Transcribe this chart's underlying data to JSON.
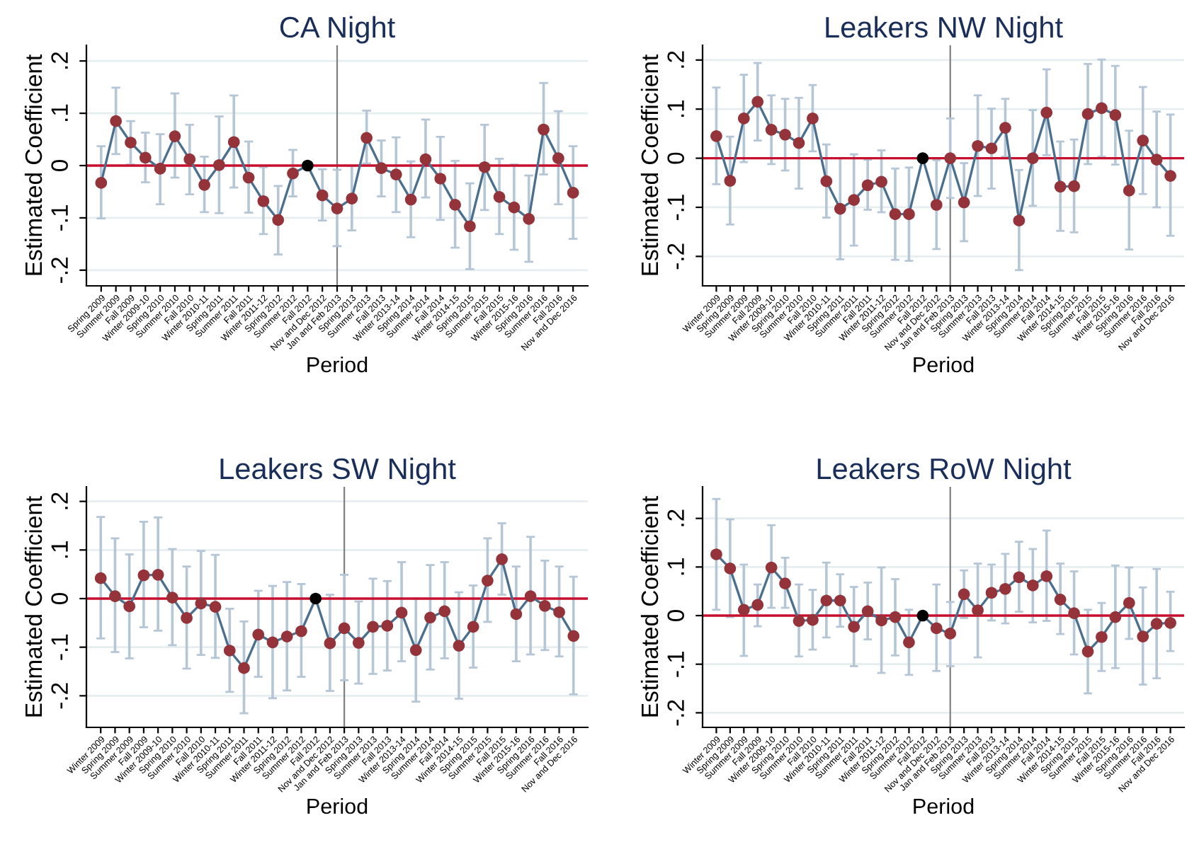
{
  "chart_data": [
    {
      "type": "line",
      "title": "CA Night",
      "xlabel": "Period",
      "ylabel": "Estimated Coefficient",
      "categories": [
        "Spring 2009",
        "Summer 2009",
        "Fall 2009",
        "Winter 2009-10",
        "Spring 2010",
        "Summer 2010",
        "Fall 2010",
        "Winter 2010-11",
        "Spring 2011",
        "Summer 2011",
        "Fall 2011",
        "Winter 2011-12",
        "Spring 2012",
        "Summer 2012",
        "Fall 2012",
        "Nov and Dec 2012",
        "Jan and Feb 2013",
        "Spring 2013",
        "Summer 2013",
        "Fall 2013",
        "Winter 2013-14",
        "Spring 2014",
        "Summer 2014",
        "Fall 2014",
        "Winter 2014-15",
        "Spring 2015",
        "Summer 2015",
        "Fall 2015",
        "Winter 2015-16",
        "Spring 2016",
        "Summer 2016",
        "Fall 2016",
        "Nov and Dec 2016"
      ],
      "series": [
        {
          "color": "#4a6f8f",
          "colors": [
            "#943339",
            "#943339",
            "#943339",
            "#943339",
            "#943339",
            "#943339",
            "#943339",
            "#943339",
            "#943339",
            "#943339",
            "#943339",
            "#943339",
            "#943339",
            "#943339",
            "#000000",
            "#943339",
            "#943339",
            "#943339",
            "#943339",
            "#943339",
            "#943339",
            "#943339",
            "#943339",
            "#943339",
            "#943339",
            "#943339",
            "#943339",
            "#943339",
            "#943339",
            "#943339",
            "#943339",
            "#943339",
            "#943339"
          ],
          "values": [
            -0.033,
            0.085,
            0.044,
            0.015,
            -0.006,
            0.056,
            0.012,
            -0.037,
            0.001,
            0.045,
            -0.023,
            -0.068,
            -0.104,
            -0.015,
            0,
            -0.057,
            -0.082,
            -0.063,
            0.053,
            -0.005,
            -0.017,
            -0.065,
            0.012,
            -0.025,
            -0.075,
            -0.116,
            -0.003,
            -0.06,
            -0.08,
            -0.102,
            0.069,
            0.014,
            -0.052
          ],
          "errors": [
            [
              -0.101,
              0.037
            ],
            [
              0.022,
              0.149
            ],
            [
              0.002,
              0.085
            ],
            [
              -0.032,
              0.063
            ],
            [
              -0.074,
              0.06
            ],
            [
              -0.023,
              0.138
            ],
            [
              -0.055,
              0.078
            ],
            [
              -0.089,
              0.017
            ],
            [
              -0.091,
              0.094
            ],
            [
              -0.042,
              0.134
            ],
            [
              -0.09,
              0.046
            ],
            [
              -0.131,
              -0.003
            ],
            [
              -0.17,
              -0.039
            ],
            [
              -0.059,
              0.03
            ],
            null,
            [
              -0.105,
              -0.007
            ],
            [
              -0.154,
              -0.008
            ],
            [
              -0.124,
              -0.001
            ],
            [
              0.004,
              0.105
            ],
            [
              -0.059,
              0.048
            ],
            [
              -0.089,
              0.054
            ],
            [
              -0.137,
              0.008
            ],
            [
              -0.061,
              0.088
            ],
            [
              -0.104,
              0.055
            ],
            [
              -0.157,
              0.009
            ],
            [
              -0.198,
              -0.034
            ],
            [
              -0.085,
              0.078
            ],
            [
              -0.131,
              0.013
            ],
            [
              -0.161,
              0.002
            ],
            [
              -0.184,
              -0.019
            ],
            [
              -0.017,
              0.158
            ],
            [
              -0.074,
              0.104
            ],
            [
              -0.14,
              0.037
            ]
          ]
        }
      ],
      "ylim": [
        -0.23,
        0.23
      ],
      "yticks": [
        {
          "value": -0.2,
          "label": "-.2"
        },
        {
          "value": -0.1,
          "label": "-.1"
        },
        0,
        {
          "value": 0.1,
          "label": ".1"
        },
        {
          "value": 0.2,
          "label": ".2"
        }
      ],
      "grid": "y",
      "marker": "circle",
      "line_style": "solid",
      "ref_lines": [
        {
          "axis": "y",
          "value": 0,
          "color": "#c8102e"
        },
        {
          "axis": "x",
          "value": "Jan and Feb 2013",
          "color": "#808080"
        }
      ]
    },
    {
      "type": "line",
      "title": "Leakers NW Night",
      "xlabel": "Period",
      "ylabel": "Estimated Coefficient",
      "categories": [
        "Winter 2009",
        "Spring 2009",
        "Summer 2009",
        "Fall 2009",
        "Winter 2009-10",
        "Spring 2010",
        "Summer 2010",
        "Fall 2010",
        "Winter 2010-11",
        "Spring 2011",
        "Summer 2011",
        "Fall 2011",
        "Winter 2011-12",
        "Spring 2012",
        "Summer 2012",
        "Fall 2012",
        "Nov and Dec 2012",
        "Jan and Feb 2013",
        "Spring 2013",
        "Summer 2013",
        "Fall 2013",
        "Winter 2013-14",
        "Spring 2014",
        "Summer 2014",
        "Fall 2014",
        "Winter 2014-15",
        "Spring 2015",
        "Summer 2015",
        "Fall 2015",
        "Winter 2015-16",
        "Spring 2016",
        "Summer 2016",
        "Fall 2016",
        "Nov and Dec 2016"
      ],
      "series": [
        {
          "color": "#4a6f8f",
          "colors": [
            "#943339",
            "#943339",
            "#943339",
            "#943339",
            "#943339",
            "#943339",
            "#943339",
            "#943339",
            "#943339",
            "#943339",
            "#943339",
            "#943339",
            "#943339",
            "#943339",
            "#943339",
            "#000000",
            "#943339",
            "#943339",
            "#943339",
            "#943339",
            "#943339",
            "#943339",
            "#943339",
            "#943339",
            "#943339",
            "#943339",
            "#943339",
            "#943339",
            "#943339",
            "#943339",
            "#943339",
            "#943339",
            "#943339",
            "#943339"
          ],
          "values": [
            0.045,
            -0.046,
            0.081,
            0.115,
            0.058,
            0.048,
            0.031,
            0.081,
            -0.047,
            -0.103,
            -0.085,
            -0.055,
            -0.048,
            -0.114,
            -0.114,
            0,
            -0.095,
            0,
            -0.09,
            0.025,
            0.02,
            0.062,
            -0.127,
            0,
            0.093,
            -0.058,
            -0.057,
            0.09,
            0.102,
            0.088,
            -0.066,
            0.036,
            -0.003,
            -0.036
          ],
          "errors": [
            [
              -0.053,
              0.144
            ],
            [
              -0.135,
              0.044
            ],
            [
              -0.008,
              0.17
            ],
            [
              0.036,
              0.194
            ],
            [
              -0.012,
              0.128
            ],
            [
              -0.025,
              0.121
            ],
            [
              -0.062,
              0.123
            ],
            [
              0.014,
              0.149
            ],
            [
              -0.121,
              0.028
            ],
            [
              -0.206,
              0.0
            ],
            [
              -0.178,
              0.008
            ],
            [
              -0.105,
              -0.003
            ],
            [
              -0.11,
              0.016
            ],
            [
              -0.207,
              -0.021
            ],
            [
              -0.209,
              -0.019
            ],
            null,
            [
              -0.185,
              -0.004
            ],
            [
              -0.081,
              0.081
            ],
            [
              -0.169,
              -0.01
            ],
            [
              -0.077,
              0.128
            ],
            [
              -0.062,
              0.101
            ],
            [
              0.003,
              0.121
            ],
            [
              -0.228,
              -0.024
            ],
            [
              -0.097,
              0.098
            ],
            [
              0.006,
              0.181
            ],
            [
              -0.148,
              0.034
            ],
            [
              -0.151,
              0.038
            ],
            [
              -0.012,
              0.192
            ],
            [
              0.003,
              0.201
            ],
            [
              -0.013,
              0.188
            ],
            [
              -0.186,
              0.056
            ],
            [
              -0.073,
              0.145
            ],
            [
              -0.1,
              0.095
            ],
            [
              -0.158,
              0.089
            ]
          ]
        }
      ],
      "ylim": [
        -0.26,
        0.23
      ],
      "yticks": [
        {
          "value": -0.2,
          "label": "-.2"
        },
        {
          "value": -0.1,
          "label": "-.1"
        },
        0,
        {
          "value": 0.1,
          "label": ".1"
        },
        {
          "value": 0.2,
          "label": ".2"
        }
      ],
      "grid": "y",
      "marker": "circle",
      "line_style": "solid",
      "ref_lines": [
        {
          "axis": "y",
          "value": 0,
          "color": "#c8102e"
        },
        {
          "axis": "x",
          "value": "Jan and Feb 2013",
          "color": "#808080"
        }
      ]
    },
    {
      "type": "line",
      "title": "Leakers SW Night",
      "xlabel": "Period",
      "ylabel": "Estimated Coefficient",
      "categories": [
        "Winter 2009",
        "Spring 2009",
        "Summer 2009",
        "Fall 2009",
        "Winter 2009-10",
        "Spring 2010",
        "Summer 2010",
        "Fall 2010",
        "Winter 2010-11",
        "Spring 2011",
        "Summer 2011",
        "Fall 2011",
        "Winter 2011-12",
        "Spring 2012",
        "Summer 2012",
        "Fall 2012",
        "Nov and Dec 2012",
        "Jan and Feb 2013",
        "Spring 2013",
        "Summer 2013",
        "Fall 2013",
        "Winter 2013-14",
        "Spring 2014",
        "Summer 2014",
        "Fall 2014",
        "Winter 2014-15",
        "Spring 2015",
        "Summer 2015",
        "Fall 2015",
        "Winter 2015-16",
        "Spring 2016",
        "Summer 2016",
        "Fall 2016",
        "Nov and Dec 2016"
      ],
      "series": [
        {
          "color": "#4a6f8f",
          "colors": [
            "#943339",
            "#943339",
            "#943339",
            "#943339",
            "#943339",
            "#943339",
            "#943339",
            "#943339",
            "#943339",
            "#943339",
            "#943339",
            "#943339",
            "#943339",
            "#943339",
            "#943339",
            "#000000",
            "#943339",
            "#943339",
            "#943339",
            "#943339",
            "#943339",
            "#943339",
            "#943339",
            "#943339",
            "#943339",
            "#943339",
            "#943339",
            "#943339",
            "#943339",
            "#943339",
            "#943339",
            "#943339",
            "#943339",
            "#943339"
          ],
          "values": [
            0.042,
            0.005,
            -0.016,
            0.048,
            0.049,
            0.002,
            -0.04,
            -0.01,
            -0.017,
            -0.107,
            -0.143,
            -0.074,
            -0.09,
            -0.078,
            -0.067,
            0,
            -0.092,
            -0.061,
            -0.091,
            -0.058,
            -0.056,
            -0.029,
            -0.106,
            -0.039,
            -0.026,
            -0.097,
            -0.058,
            0.037,
            0.081,
            -0.032,
            0.005,
            -0.015,
            -0.028,
            -0.077
          ],
          "errors": [
            [
              -0.082,
              0.168
            ],
            [
              -0.11,
              0.124
            ],
            [
              -0.123,
              0.091
            ],
            [
              -0.059,
              0.158
            ],
            [
              -0.066,
              0.167
            ],
            [
              -0.096,
              0.102
            ],
            [
              -0.144,
              0.066
            ],
            [
              -0.116,
              0.098
            ],
            [
              -0.122,
              0.09
            ],
            [
              -0.192,
              -0.021
            ],
            [
              -0.236,
              -0.047
            ],
            [
              -0.161,
              0.016
            ],
            [
              -0.205,
              0.026
            ],
            [
              -0.189,
              0.034
            ],
            [
              -0.161,
              0.03
            ],
            null,
            [
              -0.19,
              0.008
            ],
            [
              -0.168,
              0.049
            ],
            [
              -0.175,
              -0.006
            ],
            [
              -0.155,
              0.041
            ],
            [
              -0.148,
              0.036
            ],
            [
              -0.129,
              0.075
            ],
            [
              -0.212,
              0.0
            ],
            [
              -0.146,
              0.069
            ],
            [
              -0.123,
              0.075
            ],
            [
              -0.206,
              0.013
            ],
            [
              -0.142,
              0.027
            ],
            [
              -0.048,
              0.124
            ],
            [
              0.008,
              0.155
            ],
            [
              -0.129,
              0.066
            ],
            [
              -0.115,
              0.127
            ],
            [
              -0.106,
              0.078
            ],
            [
              -0.119,
              0.066
            ],
            [
              -0.197,
              0.045
            ]
          ]
        }
      ],
      "ylim": [
        -0.265,
        0.23
      ],
      "yticks": [
        {
          "value": -0.2,
          "label": "-.2"
        },
        {
          "value": -0.1,
          "label": "-.1"
        },
        0,
        {
          "value": 0.1,
          "label": ".1"
        },
        {
          "value": 0.2,
          "label": ".2"
        }
      ],
      "grid": "y",
      "marker": "circle",
      "line_style": "solid",
      "ref_lines": [
        {
          "axis": "y",
          "value": 0,
          "color": "#c8102e"
        },
        {
          "axis": "x",
          "value": "Jan and Feb 2013",
          "color": "#808080"
        }
      ]
    },
    {
      "type": "line",
      "title": "Leakers RoW Night",
      "xlabel": "Period",
      "ylabel": "Estimated Coefficient",
      "categories": [
        "Winter 2009",
        "Spring 2009",
        "Summer 2009",
        "Fall 2009",
        "Winter 2009-10",
        "Spring 2010",
        "Summer 2010",
        "Fall 2010",
        "Winter 2010-11",
        "Spring 2011",
        "Summer 2011",
        "Fall 2011",
        "Winter 2011-12",
        "Spring 2012",
        "Summer 2012",
        "Fall 2012",
        "Nov and Dec 2012",
        "Jan and Feb 2013",
        "Spring 2013",
        "Summer 2013",
        "Fall 2013",
        "Winter 2013-14",
        "Spring 2014",
        "Summer 2014",
        "Fall 2014",
        "Winter 2014-15",
        "Spring 2015",
        "Summer 2015",
        "Fall 2015",
        "Winter 2015-16",
        "Spring 2016",
        "Summer 2016",
        "Fall 2016",
        "Nov and Dec 2016"
      ],
      "series": [
        {
          "color": "#4a6f8f",
          "colors": [
            "#943339",
            "#943339",
            "#943339",
            "#943339",
            "#943339",
            "#943339",
            "#943339",
            "#943339",
            "#943339",
            "#943339",
            "#943339",
            "#943339",
            "#943339",
            "#943339",
            "#943339",
            "#000000",
            "#943339",
            "#943339",
            "#943339",
            "#943339",
            "#943339",
            "#943339",
            "#943339",
            "#943339",
            "#943339",
            "#943339",
            "#943339",
            "#943339",
            "#943339",
            "#943339",
            "#943339",
            "#943339",
            "#943339",
            "#943339"
          ],
          "values": [
            0.126,
            0.097,
            0.012,
            0.022,
            0.099,
            0.066,
            -0.011,
            -0.009,
            0.031,
            0.031,
            -0.023,
            0.009,
            -0.01,
            -0.003,
            -0.055,
            0,
            -0.026,
            -0.037,
            0.044,
            0.011,
            0.047,
            0.055,
            0.079,
            0.062,
            0.081,
            0.033,
            0.005,
            -0.074,
            -0.044,
            -0.003,
            0.026,
            -0.043,
            -0.017,
            -0.015
          ],
          "errors": [
            [
              0.012,
              0.24
            ],
            [
              -0.003,
              0.198
            ],
            [
              -0.083,
              0.105
            ],
            [
              -0.022,
              0.064
            ],
            [
              0.016,
              0.186
            ],
            [
              0.016,
              0.119
            ],
            [
              -0.084,
              0.064
            ],
            [
              -0.07,
              0.053
            ],
            [
              -0.045,
              0.109
            ],
            [
              -0.023,
              0.085
            ],
            [
              -0.104,
              0.059
            ],
            [
              -0.049,
              0.068
            ],
            [
              -0.118,
              0.099
            ],
            [
              -0.082,
              0.075
            ],
            [
              -0.122,
              0.012
            ],
            null,
            [
              -0.114,
              0.064
            ],
            [
              -0.104,
              0.028
            ],
            [
              -0.005,
              0.093
            ],
            [
              -0.086,
              0.107
            ],
            [
              -0.01,
              0.105
            ],
            [
              -0.016,
              0.127
            ],
            [
              0.008,
              0.152
            ],
            [
              -0.014,
              0.137
            ],
            [
              -0.011,
              0.175
            ],
            [
              -0.038,
              0.107
            ],
            [
              -0.08,
              0.091
            ],
            [
              -0.16,
              0.012
            ],
            [
              -0.114,
              0.026
            ],
            [
              -0.108,
              0.103
            ],
            [
              -0.048,
              0.099
            ],
            [
              -0.142,
              0.058
            ],
            [
              -0.129,
              0.096
            ],
            [
              -0.073,
              0.049
            ]
          ]
        }
      ],
      "ylim": [
        -0.23,
        0.265
      ],
      "yticks": [
        {
          "value": -0.2,
          "label": "-.2"
        },
        {
          "value": -0.1,
          "label": "-.1"
        },
        0,
        {
          "value": 0.1,
          "label": ".1"
        },
        {
          "value": 0.2,
          "label": ".2"
        }
      ],
      "grid": "y",
      "marker": "circle",
      "line_style": "solid",
      "ref_lines": [
        {
          "axis": "y",
          "value": 0,
          "color": "#c8102e"
        },
        {
          "axis": "x",
          "value": "Jan and Feb 2013",
          "color": "#808080"
        }
      ]
    }
  ]
}
